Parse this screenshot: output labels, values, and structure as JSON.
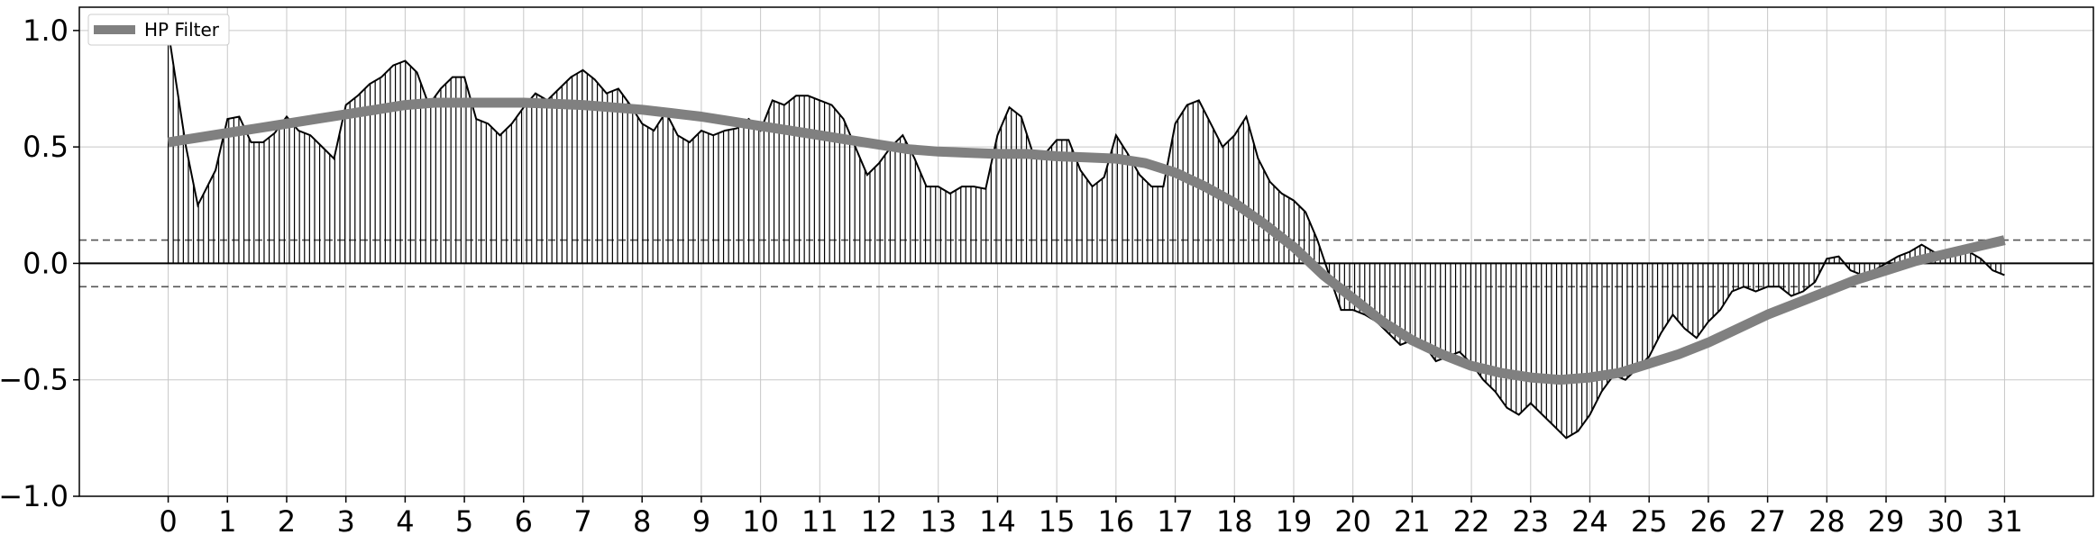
{
  "chart_data": {
    "type": "line",
    "title": "",
    "xlabel": "",
    "ylabel": "",
    "xlim": [
      -1.5,
      32.5
    ],
    "ylim": [
      -1.0,
      1.1
    ],
    "xticks": [
      0,
      1,
      2,
      3,
      4,
      5,
      6,
      7,
      8,
      9,
      10,
      11,
      12,
      13,
      14,
      15,
      16,
      17,
      18,
      19,
      20,
      21,
      22,
      23,
      24,
      25,
      26,
      27,
      28,
      29,
      30,
      31
    ],
    "xtick_labels": [
      "0",
      "1",
      "2",
      "3",
      "4",
      "5",
      "6",
      "7",
      "8",
      "9",
      "10",
      "11",
      "12",
      "13",
      "14",
      "15",
      "16",
      "17",
      "18",
      "19",
      "20",
      "21",
      "22",
      "23",
      "24",
      "25",
      "26",
      "27",
      "28",
      "29",
      "30",
      "31"
    ],
    "yticks": [
      -1.0,
      -0.5,
      0.0,
      0.5,
      1.0
    ],
    "ytick_labels": [
      "−1.0",
      "−0.5",
      "0.0",
      "0.5",
      "1.0"
    ],
    "grid": true,
    "legend_position": "top-left",
    "reference_lines": [
      {
        "y": 0.0,
        "style": "solid",
        "color": "#000000"
      },
      {
        "y": 0.1,
        "style": "dashed",
        "color": "#555555"
      },
      {
        "y": -0.1,
        "style": "dashed",
        "color": "#555555"
      }
    ],
    "series": [
      {
        "name": "",
        "style": "stems",
        "color": "#000000",
        "x": [
          0,
          0.15,
          0.3,
          0.5,
          0.6,
          0.8,
          1.0,
          1.2,
          1.4,
          1.6,
          1.8,
          2.0,
          2.2,
          2.4,
          2.6,
          2.8,
          3.0,
          3.2,
          3.4,
          3.6,
          3.8,
          4.0,
          4.2,
          4.4,
          4.6,
          4.8,
          5.0,
          5.2,
          5.4,
          5.6,
          5.8,
          6.0,
          6.2,
          6.4,
          6.6,
          6.8,
          7.0,
          7.2,
          7.4,
          7.6,
          7.8,
          8.0,
          8.2,
          8.4,
          8.6,
          8.8,
          9.0,
          9.2,
          9.4,
          9.6,
          9.8,
          10.0,
          10.2,
          10.4,
          10.6,
          10.8,
          11.0,
          11.2,
          11.4,
          11.6,
          11.8,
          12.0,
          12.2,
          12.4,
          12.6,
          12.8,
          13.0,
          13.2,
          13.4,
          13.6,
          13.8,
          14.0,
          14.2,
          14.4,
          14.6,
          14.8,
          15.0,
          15.2,
          15.4,
          15.6,
          15.8,
          16.0,
          16.2,
          16.4,
          16.6,
          16.8,
          17.0,
          17.2,
          17.4,
          17.6,
          17.8,
          18.0,
          18.2,
          18.4,
          18.6,
          18.8,
          19.0,
          19.2,
          19.4,
          19.6,
          19.8,
          20.0,
          20.2,
          20.4,
          20.6,
          20.8,
          21.0,
          21.2,
          21.4,
          21.6,
          21.8,
          22.0,
          22.2,
          22.4,
          22.6,
          22.8,
          23.0,
          23.2,
          23.4,
          23.6,
          23.8,
          24.0,
          24.2,
          24.4,
          24.6,
          24.8,
          25.0,
          25.2,
          25.4,
          25.6,
          25.8,
          26.0,
          26.2,
          26.4,
          26.6,
          26.8,
          27.0,
          27.2,
          27.4,
          27.6,
          27.8,
          28.0,
          28.2,
          28.4,
          28.6,
          28.8,
          29.0,
          29.2,
          29.4,
          29.6,
          29.8,
          30.0,
          30.2,
          30.4,
          30.6,
          30.8,
          31.0
        ],
        "values": [
          1.0,
          0.75,
          0.5,
          0.25,
          0.3,
          0.4,
          0.62,
          0.63,
          0.52,
          0.52,
          0.56,
          0.63,
          0.57,
          0.55,
          0.5,
          0.45,
          0.68,
          0.72,
          0.77,
          0.8,
          0.85,
          0.87,
          0.82,
          0.68,
          0.75,
          0.8,
          0.8,
          0.62,
          0.6,
          0.55,
          0.6,
          0.67,
          0.73,
          0.7,
          0.75,
          0.8,
          0.83,
          0.79,
          0.73,
          0.75,
          0.68,
          0.6,
          0.57,
          0.65,
          0.55,
          0.52,
          0.57,
          0.55,
          0.57,
          0.58,
          0.62,
          0.57,
          0.7,
          0.68,
          0.72,
          0.72,
          0.7,
          0.68,
          0.62,
          0.5,
          0.38,
          0.43,
          0.5,
          0.55,
          0.45,
          0.33,
          0.33,
          0.3,
          0.33,
          0.33,
          0.32,
          0.55,
          0.67,
          0.63,
          0.47,
          0.47,
          0.53,
          0.53,
          0.4,
          0.33,
          0.37,
          0.55,
          0.47,
          0.38,
          0.33,
          0.33,
          0.6,
          0.68,
          0.7,
          0.6,
          0.5,
          0.55,
          0.63,
          0.45,
          0.35,
          0.3,
          0.27,
          0.22,
          0.1,
          -0.05,
          -0.2,
          -0.2,
          -0.22,
          -0.25,
          -0.3,
          -0.35,
          -0.33,
          -0.35,
          -0.42,
          -0.4,
          -0.38,
          -0.43,
          -0.5,
          -0.55,
          -0.62,
          -0.65,
          -0.6,
          -0.65,
          -0.7,
          -0.75,
          -0.72,
          -0.65,
          -0.55,
          -0.48,
          -0.5,
          -0.45,
          -0.4,
          -0.3,
          -0.22,
          -0.28,
          -0.32,
          -0.25,
          -0.2,
          -0.12,
          -0.1,
          -0.12,
          -0.1,
          -0.1,
          -0.14,
          -0.12,
          -0.08,
          0.02,
          0.03,
          -0.03,
          -0.05,
          -0.03,
          0.0,
          0.03,
          0.05,
          0.08,
          0.05,
          0.03,
          0.05,
          0.05,
          0.02,
          -0.03,
          -0.05
        ]
      },
      {
        "name": "HP Filter",
        "style": "thick-line",
        "color": "#808080",
        "x": [
          0,
          0.5,
          1,
          1.5,
          2,
          2.5,
          3,
          3.5,
          4,
          4.5,
          5,
          5.5,
          6,
          6.5,
          7,
          7.5,
          8,
          8.5,
          9,
          9.5,
          10,
          10.5,
          11,
          11.5,
          12,
          12.5,
          13,
          13.5,
          14,
          14.5,
          15,
          15.5,
          16,
          16.5,
          17,
          17.5,
          18,
          18.5,
          19,
          19.5,
          20,
          20.5,
          21,
          21.5,
          22,
          22.5,
          23,
          23.5,
          24,
          24.5,
          25,
          25.5,
          26,
          26.5,
          27,
          27.5,
          28,
          28.5,
          29,
          29.5,
          30,
          30.5,
          31
        ],
        "values": [
          0.52,
          0.54,
          0.56,
          0.58,
          0.6,
          0.62,
          0.64,
          0.66,
          0.68,
          0.69,
          0.69,
          0.69,
          0.69,
          0.685,
          0.68,
          0.67,
          0.66,
          0.645,
          0.63,
          0.61,
          0.59,
          0.57,
          0.55,
          0.53,
          0.51,
          0.49,
          0.48,
          0.475,
          0.47,
          0.47,
          0.46,
          0.455,
          0.45,
          0.43,
          0.39,
          0.33,
          0.26,
          0.17,
          0.07,
          -0.05,
          -0.15,
          -0.25,
          -0.33,
          -0.39,
          -0.44,
          -0.47,
          -0.49,
          -0.5,
          -0.49,
          -0.47,
          -0.43,
          -0.39,
          -0.34,
          -0.28,
          -0.22,
          -0.17,
          -0.12,
          -0.07,
          -0.03,
          0.01,
          0.04,
          0.07,
          0.1
        ]
      }
    ]
  }
}
